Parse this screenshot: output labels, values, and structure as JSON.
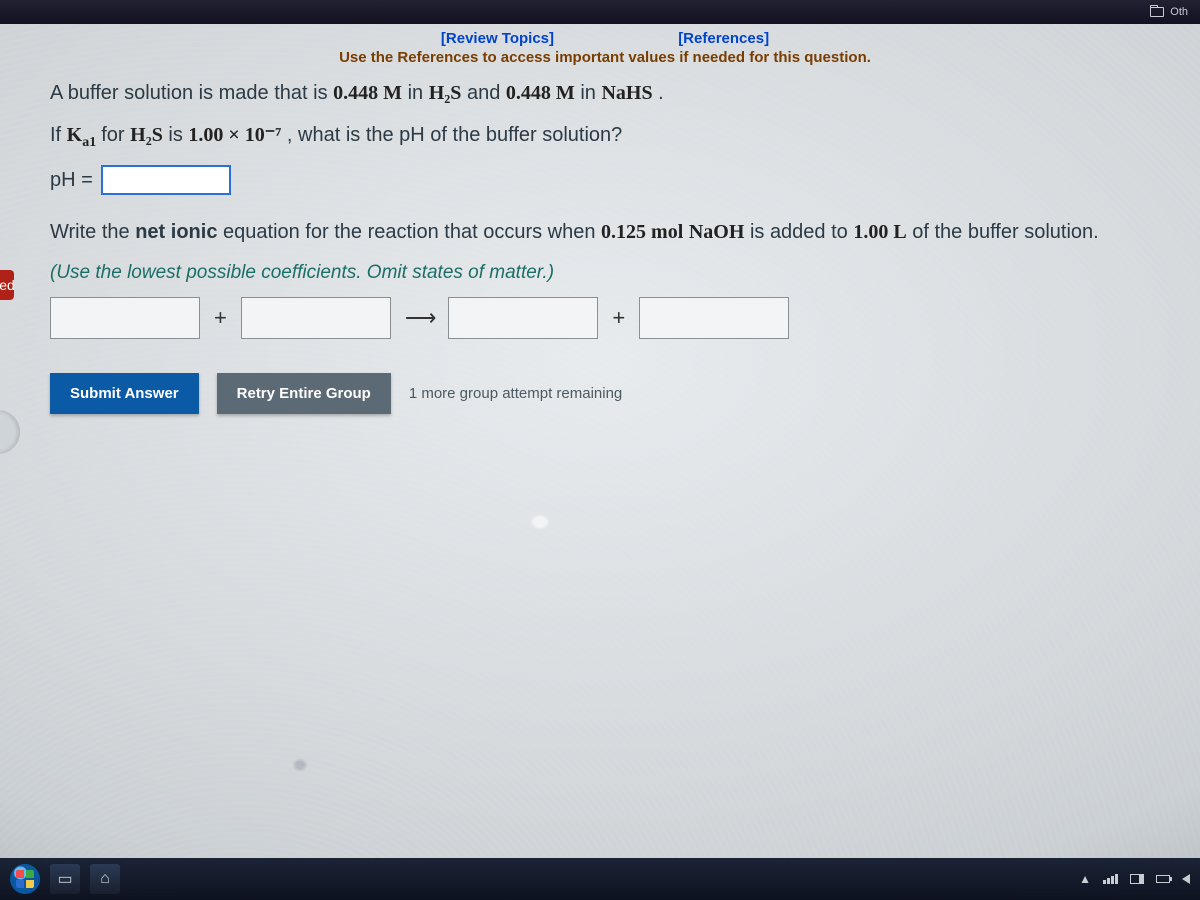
{
  "topbar": {
    "other_label": "Oth"
  },
  "links": {
    "review_topics": "[Review Topics]",
    "references": "[References]"
  },
  "instruction": "Use the References to access important values if needed for this question.",
  "question": {
    "line1_pre": "A buffer solution is made that is ",
    "conc1": "0.448 M",
    "line1_in": " in ",
    "species1": "H₂S",
    "line1_and": " and ",
    "conc2": "0.448 M",
    "line1_in2": " in ",
    "species2": "NaHS",
    "line1_end": ".",
    "line2_if": "If ",
    "ka_label": "K",
    "ka_sub": "a1",
    "line2_for": " for ",
    "species3": "H₂S",
    "line2_is": " is ",
    "ka_value": "1.00 × 10⁻⁷",
    "line2_rest": ", what is the pH of the buffer solution?",
    "ph_label": "pH =",
    "line3_a": "Write the ",
    "net_ionic": "net ionic",
    "line3_b": " equation for the reaction that occurs when ",
    "mol_amount": "0.125 mol",
    "base": "NaOH",
    "line3_c": " is added to ",
    "volume": "1.00 L",
    "line3_d": " of the buffer solution.",
    "hint": "(Use the lowest possible coefficients. Omit states of matter.)",
    "plus": "+",
    "arrow": "⟶"
  },
  "buttons": {
    "submit": "Submit Answer",
    "retry": "Retry Entire Group"
  },
  "status": {
    "attempts": "1 more group attempt remaining"
  },
  "left_tab": {
    "label": "ed"
  },
  "tray": {
    "up": "▲"
  }
}
